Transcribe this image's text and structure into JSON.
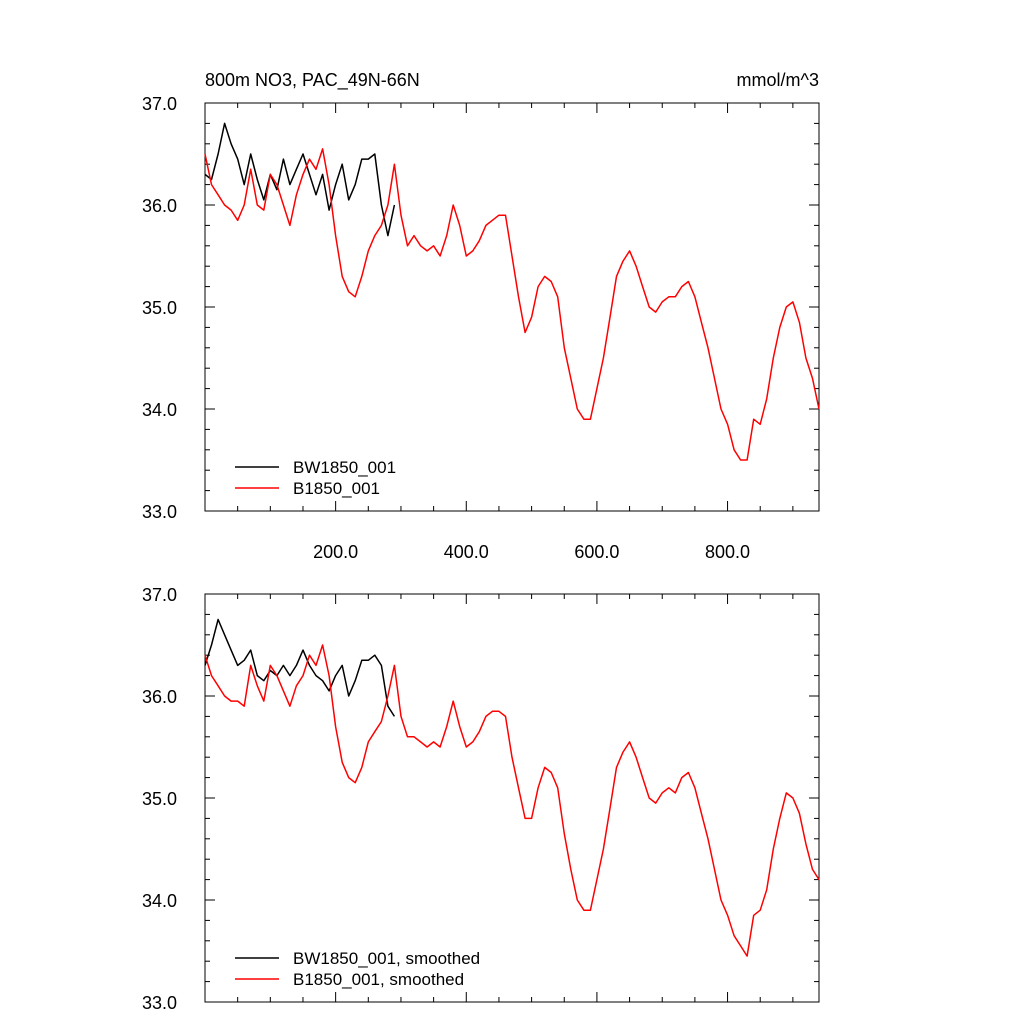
{
  "figure": {
    "title_left": "800m NO3, PAC_49N-66N",
    "title_right": "mmol/m^3"
  },
  "chart_data": [
    {
      "type": "line",
      "title": "800m NO3, PAC_49N-66N",
      "units": "mmol/m^3",
      "xlabel": "",
      "ylabel": "",
      "xlim": [
        0,
        940
      ],
      "ylim": [
        33.0,
        37.0
      ],
      "x_ticks": [
        200,
        400,
        600,
        800
      ],
      "x_tick_labels": [
        "200.0",
        "400.0",
        "600.0",
        "800.0"
      ],
      "y_ticks": [
        33,
        34,
        35,
        36,
        37
      ],
      "y_tick_labels": [
        "33.0",
        "34.0",
        "35.0",
        "36.0",
        "37.0"
      ],
      "grid": false,
      "legend_position": "bottom-left",
      "series": [
        {
          "name": "BW1850_001",
          "color": "#000000",
          "x": [
            0,
            10,
            20,
            30,
            40,
            50,
            60,
            70,
            80,
            90,
            100,
            110,
            120,
            130,
            140,
            150,
            160,
            170,
            180,
            190,
            200,
            210,
            220,
            230,
            240,
            250,
            260,
            270,
            280,
            290
          ],
          "y": [
            36.3,
            36.25,
            36.5,
            36.8,
            36.6,
            36.45,
            36.2,
            36.5,
            36.25,
            36.05,
            36.3,
            36.15,
            36.45,
            36.2,
            36.35,
            36.5,
            36.3,
            36.1,
            36.3,
            35.95,
            36.2,
            36.4,
            36.05,
            36.2,
            36.45,
            36.45,
            36.5,
            36.0,
            35.7,
            36.0
          ]
        },
        {
          "name": "B1850_001",
          "color": "#ff0000",
          "x": [
            0,
            10,
            20,
            30,
            40,
            50,
            60,
            70,
            80,
            90,
            100,
            110,
            120,
            130,
            140,
            150,
            160,
            170,
            180,
            190,
            200,
            210,
            220,
            230,
            240,
            250,
            260,
            270,
            280,
            290,
            300,
            310,
            320,
            330,
            340,
            350,
            360,
            370,
            380,
            390,
            400,
            410,
            420,
            430,
            440,
            450,
            460,
            470,
            480,
            490,
            500,
            510,
            520,
            530,
            540,
            550,
            560,
            570,
            580,
            590,
            600,
            610,
            620,
            630,
            640,
            650,
            660,
            670,
            680,
            690,
            700,
            710,
            720,
            730,
            740,
            750,
            760,
            770,
            780,
            790,
            800,
            810,
            820,
            830,
            840,
            850,
            860,
            870,
            880,
            890,
            900,
            910,
            920,
            930,
            940
          ],
          "y": [
            36.5,
            36.2,
            36.1,
            36.0,
            35.95,
            35.85,
            36.0,
            36.35,
            36.0,
            35.95,
            36.3,
            36.2,
            36.0,
            35.8,
            36.1,
            36.3,
            36.45,
            36.35,
            36.55,
            36.2,
            35.7,
            35.3,
            35.15,
            35.1,
            35.3,
            35.55,
            35.7,
            35.8,
            36.0,
            36.4,
            35.9,
            35.6,
            35.7,
            35.6,
            35.55,
            35.6,
            35.5,
            35.7,
            36.0,
            35.8,
            35.5,
            35.55,
            35.65,
            35.8,
            35.85,
            35.9,
            35.9,
            35.5,
            35.1,
            34.75,
            34.9,
            35.2,
            35.3,
            35.25,
            35.1,
            34.6,
            34.3,
            34.0,
            33.9,
            33.9,
            34.2,
            34.5,
            34.9,
            35.3,
            35.45,
            35.55,
            35.4,
            35.2,
            35.0,
            34.95,
            35.05,
            35.1,
            35.1,
            35.2,
            35.25,
            35.1,
            34.85,
            34.6,
            34.3,
            34.0,
            33.85,
            33.6,
            33.5,
            33.5,
            33.9,
            33.85,
            34.1,
            34.5,
            34.8,
            35.0,
            35.05,
            34.85,
            34.5,
            34.3,
            34.0
          ]
        }
      ]
    },
    {
      "type": "line",
      "title": "",
      "xlabel": "",
      "ylabel": "",
      "xlim": [
        0,
        940
      ],
      "ylim": [
        33.0,
        37.0
      ],
      "x_ticks": [
        200,
        400,
        600,
        800
      ],
      "x_tick_labels": [],
      "y_ticks": [
        33,
        34,
        35,
        36,
        37
      ],
      "y_tick_labels": [
        "33.0",
        "34.0",
        "35.0",
        "36.0",
        "37.0"
      ],
      "grid": false,
      "legend_position": "bottom-left",
      "series": [
        {
          "name": "BW1850_001, smoothed",
          "color": "#000000",
          "x": [
            0,
            10,
            20,
            30,
            40,
            50,
            60,
            70,
            80,
            90,
            100,
            110,
            120,
            130,
            140,
            150,
            160,
            170,
            180,
            190,
            200,
            210,
            220,
            230,
            240,
            250,
            260,
            270,
            280,
            290
          ],
          "y": [
            36.3,
            36.5,
            36.75,
            36.6,
            36.45,
            36.3,
            36.35,
            36.45,
            36.2,
            36.15,
            36.25,
            36.2,
            36.3,
            36.2,
            36.3,
            36.45,
            36.3,
            36.2,
            36.15,
            36.05,
            36.2,
            36.3,
            36.0,
            36.15,
            36.35,
            36.35,
            36.4,
            36.3,
            35.9,
            35.8
          ]
        },
        {
          "name": "B1850_001, smoothed",
          "color": "#ff0000",
          "x": [
            0,
            10,
            20,
            30,
            40,
            50,
            60,
            70,
            80,
            90,
            100,
            110,
            120,
            130,
            140,
            150,
            160,
            170,
            180,
            190,
            200,
            210,
            220,
            230,
            240,
            250,
            260,
            270,
            280,
            290,
            300,
            310,
            320,
            330,
            340,
            350,
            360,
            370,
            380,
            390,
            400,
            410,
            420,
            430,
            440,
            450,
            460,
            470,
            480,
            490,
            500,
            510,
            520,
            530,
            540,
            550,
            560,
            570,
            580,
            590,
            600,
            610,
            620,
            630,
            640,
            650,
            660,
            670,
            680,
            690,
            700,
            710,
            720,
            730,
            740,
            750,
            760,
            770,
            780,
            790,
            800,
            810,
            820,
            830,
            840,
            850,
            860,
            870,
            880,
            890,
            900,
            910,
            920,
            930,
            940
          ],
          "y": [
            36.4,
            36.2,
            36.1,
            36.0,
            35.95,
            35.95,
            35.9,
            36.3,
            36.1,
            35.95,
            36.3,
            36.2,
            36.05,
            35.9,
            36.1,
            36.2,
            36.4,
            36.3,
            36.5,
            36.2,
            35.7,
            35.35,
            35.2,
            35.15,
            35.3,
            35.55,
            35.65,
            35.75,
            36.0,
            36.3,
            35.8,
            35.6,
            35.6,
            35.55,
            35.5,
            35.55,
            35.5,
            35.7,
            35.95,
            35.7,
            35.5,
            35.55,
            35.65,
            35.8,
            35.85,
            35.85,
            35.8,
            35.4,
            35.1,
            34.8,
            34.8,
            35.1,
            35.3,
            35.25,
            35.1,
            34.65,
            34.3,
            34.0,
            33.9,
            33.9,
            34.2,
            34.5,
            34.9,
            35.3,
            35.45,
            35.55,
            35.4,
            35.2,
            35.0,
            34.95,
            35.05,
            35.1,
            35.05,
            35.2,
            35.25,
            35.1,
            34.85,
            34.6,
            34.3,
            34.0,
            33.85,
            33.65,
            33.55,
            33.45,
            33.85,
            33.9,
            34.1,
            34.5,
            34.8,
            35.05,
            35.0,
            34.85,
            34.55,
            34.3,
            34.2
          ]
        }
      ]
    }
  ]
}
